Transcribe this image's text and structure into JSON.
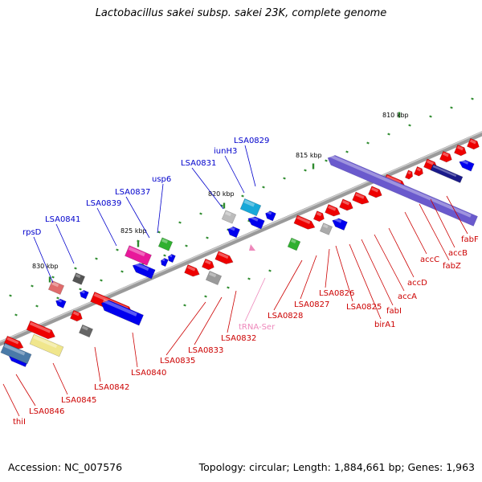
{
  "header": {
    "title": "Lactobacillus sakei subsp. sakei 23K, complete genome"
  },
  "footer": {
    "accession": "Accession: NC_007576",
    "summary": "Topology: circular; Length: 1,884,661 bp; Genes: 1,963"
  },
  "scale_labels": [
    "810 kbp",
    "815 kbp",
    "820 kbp",
    "825 kbp",
    "830 kbp"
  ],
  "colors": {
    "backbone": "#8a8a8a",
    "cds_forward": "#ee0000",
    "cds_reverse": "#0000ee",
    "label_forward": "#cc0000",
    "label_reverse": "#0000cc",
    "trna": "#ee88bb",
    "tick": "#2e8b2e",
    "operon": "#6a5acd"
  },
  "gene_labels_top": [
    "rpsD",
    "LSA0841",
    "LSA0839",
    "LSA0837",
    "usp6",
    "LSA0831",
    "iunH3",
    "LSA0829"
  ],
  "gene_labels_bottom": [
    "thiI",
    "LSA0846",
    "LSA0845",
    "LSA0842",
    "LSA0840",
    "LSA0835",
    "LSA0833",
    "LSA0832",
    "tRNA-Ser",
    "LSA0828",
    "LSA0827",
    "LSA0826",
    "LSA0825",
    "birA1",
    "fabI",
    "accA",
    "accD",
    "accC",
    "fabZ",
    "accB",
    "fabF"
  ]
}
